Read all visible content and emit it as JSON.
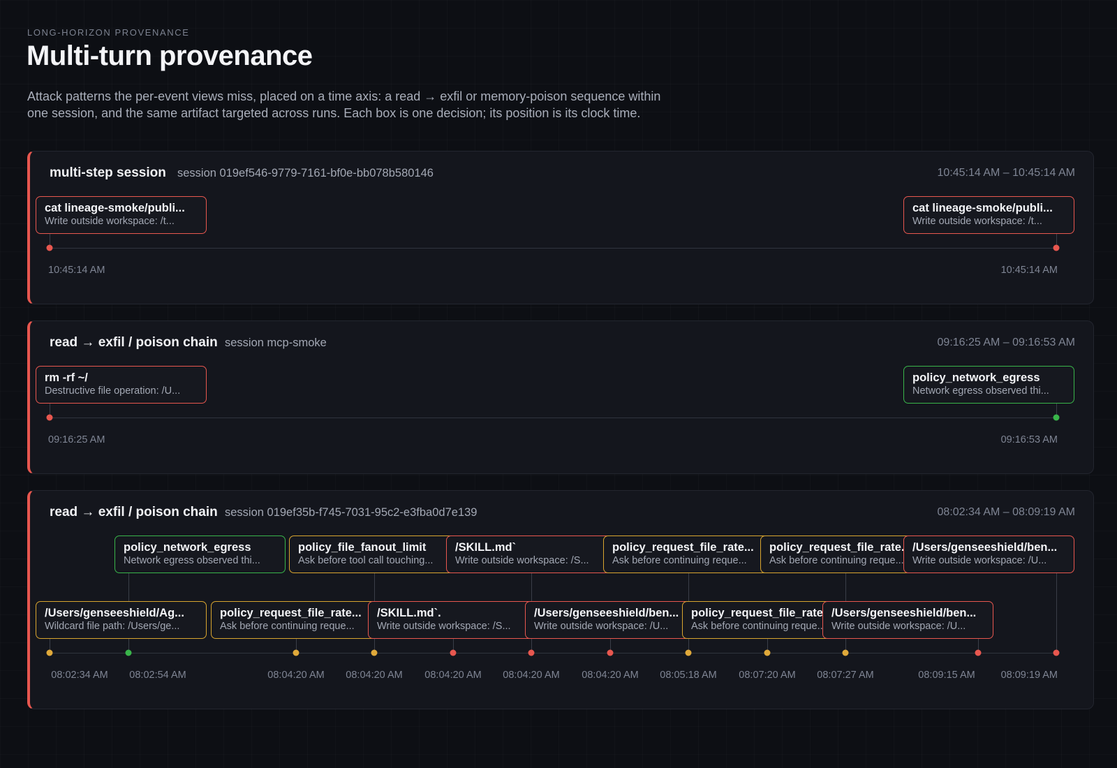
{
  "header": {
    "eyebrow": "LONG-HORIZON PROVENANCE",
    "title": "Multi-turn provenance",
    "description": "Attack patterns the per-event views miss, placed on a time axis: a read → exfil or memory-poison sequence within one session, and the same artifact targeted across runs. Each box is one decision; its position is its clock time."
  },
  "colors": {
    "red": "#e8574f",
    "green": "#39b54a",
    "amber": "#d9a52f",
    "background": "#0d0f14",
    "panel": "#14161d"
  },
  "panels": [
    {
      "title": "multi-step session",
      "session": "session 019ef546-9779-7161-bf0e-bb078b580146",
      "range": "10:45:14 AM – 10:45:14 AM",
      "events": [
        {
          "title": "cat lineage-smoke/publi...",
          "subtitle": "Write outside workspace: /t...",
          "status": "red"
        },
        {
          "title": "cat lineage-smoke/publi...",
          "subtitle": "Write outside workspace: /t...",
          "status": "red"
        }
      ],
      "ticks": [
        "10:45:14 AM",
        "10:45:14 AM"
      ]
    },
    {
      "title": "read → exfil / poison chain",
      "session": "session mcp-smoke",
      "range": "09:16:25 AM – 09:16:53 AM",
      "events": [
        {
          "title": "rm -rf ~/",
          "subtitle": "Destructive file operation: /U...",
          "status": "red"
        },
        {
          "title": "policy_network_egress",
          "subtitle": "Network egress observed thi...",
          "status": "green"
        }
      ],
      "ticks": [
        "09:16:25 AM",
        "09:16:53 AM"
      ]
    },
    {
      "title": "read → exfil / poison chain",
      "session": "session 019ef35b-f745-7031-95c2-e3fba0d7e139",
      "range": "08:02:34 AM – 08:09:19 AM",
      "events": [
        {
          "title": "/Users/genseeshield/Ag...",
          "subtitle": "Wildcard file path: /Users/ge...",
          "status": "amber"
        },
        {
          "title": "policy_network_egress",
          "subtitle": "Network egress observed thi...",
          "status": "green"
        },
        {
          "title": "policy_request_file_rate...",
          "subtitle": "Ask before continuing reque...",
          "status": "amber"
        },
        {
          "title": "policy_file_fanout_limit",
          "subtitle": "Ask before tool call touching...",
          "status": "amber"
        },
        {
          "title": "/SKILL.md`.",
          "subtitle": "Write outside workspace: /S...",
          "status": "red"
        },
        {
          "title": "/SKILL.md`",
          "subtitle": "Write outside workspace: /S...",
          "status": "red"
        },
        {
          "title": "/Users/genseeshield/ben...",
          "subtitle": "Write outside workspace: /U...",
          "status": "red"
        },
        {
          "title": "policy_request_file_rate...",
          "subtitle": "Ask before continuing reque...",
          "status": "amber"
        },
        {
          "title": "policy_request_file_rate...",
          "subtitle": "Ask before continuing reque...",
          "status": "amber"
        },
        {
          "title": "policy_request_file_rate...",
          "subtitle": "Ask before continuing reque...",
          "status": "amber"
        },
        {
          "title": "/Users/genseeshield/ben...",
          "subtitle": "Write outside workspace: /U...",
          "status": "red"
        },
        {
          "title": "/Users/genseeshield/ben...",
          "subtitle": "Write outside workspace: /U...",
          "status": "red"
        }
      ],
      "ticks": [
        "08:02:34 AM",
        "08:02:54 AM",
        "08:04:20 AM",
        "08:04:20 AM",
        "08:04:20 AM",
        "08:04:20 AM",
        "08:04:20 AM",
        "08:05:18 AM",
        "08:07:20 AM",
        "08:07:27 AM",
        "08:09:15 AM",
        "08:09:19 AM"
      ]
    }
  ]
}
